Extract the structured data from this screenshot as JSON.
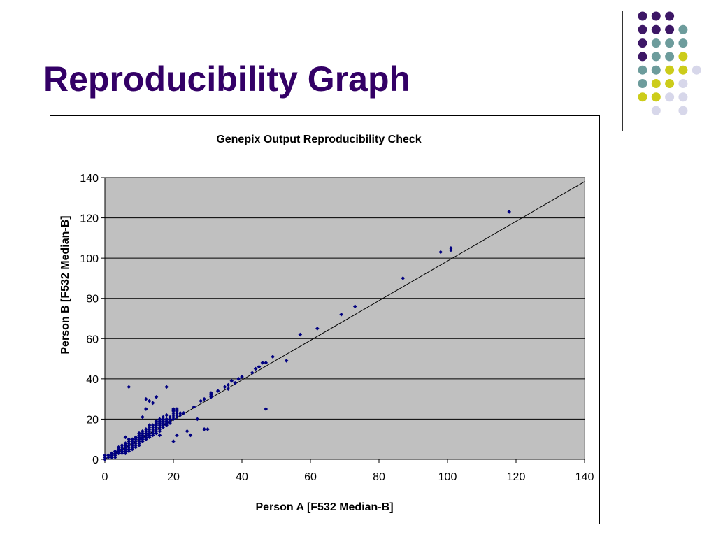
{
  "slide": {
    "title": "Reproducibility Graph"
  },
  "decoration": {
    "dot_colors": [
      "#3d1766",
      "#6d9c9c",
      "#cccc1a",
      "#d7d7ea"
    ],
    "dot_grid": [
      [
        0,
        0,
        0,
        null,
        null
      ],
      [
        0,
        0,
        0,
        1,
        null
      ],
      [
        0,
        1,
        1,
        1,
        null
      ],
      [
        0,
        1,
        1,
        2,
        null
      ],
      [
        1,
        1,
        2,
        2,
        3
      ],
      [
        1,
        2,
        2,
        3,
        null
      ],
      [
        2,
        2,
        3,
        3,
        null
      ],
      [
        null,
        3,
        null,
        3,
        null
      ]
    ]
  },
  "colors": {
    "title": "#330066",
    "plot_background": "#c0c0c0",
    "marker": "#000080",
    "gridline": "#000000",
    "trendline": "#000000"
  },
  "chart_data": {
    "type": "scatter",
    "title": "Genepix Output Reproducibility Check",
    "xlabel": "Person A [F532 Median-B]",
    "ylabel": "Person B [F532 Median-B]",
    "xlim": [
      0,
      140
    ],
    "ylim": [
      0,
      140
    ],
    "xticks": [
      0,
      20,
      40,
      60,
      80,
      100,
      120,
      140
    ],
    "yticks": [
      0,
      20,
      40,
      60,
      80,
      100,
      120,
      140
    ],
    "grid": "horizontal",
    "legend": "none",
    "marker": "diamond",
    "trendline": {
      "x": [
        0,
        140
      ],
      "y": [
        0,
        138
      ]
    },
    "points": [
      [
        0,
        0
      ],
      [
        0,
        1
      ],
      [
        0,
        2
      ],
      [
        1,
        1
      ],
      [
        1,
        2
      ],
      [
        2,
        1
      ],
      [
        2,
        2
      ],
      [
        2,
        3
      ],
      [
        3,
        2
      ],
      [
        3,
        3
      ],
      [
        3,
        4
      ],
      [
        3,
        1
      ],
      [
        4,
        3
      ],
      [
        4,
        4
      ],
      [
        4,
        5
      ],
      [
        4,
        6
      ],
      [
        5,
        4
      ],
      [
        5,
        5
      ],
      [
        5,
        6
      ],
      [
        5,
        7
      ],
      [
        5,
        3
      ],
      [
        6,
        4
      ],
      [
        6,
        5
      ],
      [
        6,
        6
      ],
      [
        6,
        7
      ],
      [
        6,
        8
      ],
      [
        6,
        11
      ],
      [
        6,
        3
      ],
      [
        7,
        5
      ],
      [
        7,
        6
      ],
      [
        7,
        7
      ],
      [
        7,
        8
      ],
      [
        7,
        9
      ],
      [
        7,
        10
      ],
      [
        7,
        4
      ],
      [
        7,
        36
      ],
      [
        8,
        6
      ],
      [
        8,
        7
      ],
      [
        8,
        8
      ],
      [
        8,
        9
      ],
      [
        8,
        10
      ],
      [
        8,
        5
      ],
      [
        9,
        7
      ],
      [
        9,
        8
      ],
      [
        9,
        9
      ],
      [
        9,
        10
      ],
      [
        9,
        11
      ],
      [
        9,
        6
      ],
      [
        10,
        8
      ],
      [
        10,
        9
      ],
      [
        10,
        10
      ],
      [
        10,
        11
      ],
      [
        10,
        12
      ],
      [
        10,
        13
      ],
      [
        10,
        7
      ],
      [
        11,
        9
      ],
      [
        11,
        10
      ],
      [
        11,
        11
      ],
      [
        11,
        12
      ],
      [
        11,
        13
      ],
      [
        11,
        14
      ],
      [
        11,
        21
      ],
      [
        12,
        10
      ],
      [
        12,
        11
      ],
      [
        12,
        12
      ],
      [
        12,
        13
      ],
      [
        12,
        14
      ],
      [
        12,
        15
      ],
      [
        12,
        25
      ],
      [
        12,
        30
      ],
      [
        13,
        11
      ],
      [
        13,
        12
      ],
      [
        13,
        13
      ],
      [
        13,
        14
      ],
      [
        13,
        15
      ],
      [
        13,
        16
      ],
      [
        13,
        17
      ],
      [
        13,
        29
      ],
      [
        14,
        12
      ],
      [
        14,
        13
      ],
      [
        14,
        14
      ],
      [
        14,
        15
      ],
      [
        14,
        16
      ],
      [
        14,
        17
      ],
      [
        14,
        28
      ],
      [
        15,
        13
      ],
      [
        15,
        14
      ],
      [
        15,
        15
      ],
      [
        15,
        16
      ],
      [
        15,
        17
      ],
      [
        15,
        18
      ],
      [
        15,
        19
      ],
      [
        15,
        31
      ],
      [
        16,
        14
      ],
      [
        16,
        15
      ],
      [
        16,
        16
      ],
      [
        16,
        17
      ],
      [
        16,
        18
      ],
      [
        16,
        19
      ],
      [
        16,
        20
      ],
      [
        16,
        12
      ],
      [
        17,
        16
      ],
      [
        17,
        17
      ],
      [
        17,
        18
      ],
      [
        17,
        19
      ],
      [
        17,
        20
      ],
      [
        17,
        21
      ],
      [
        18,
        17
      ],
      [
        18,
        18
      ],
      [
        18,
        19
      ],
      [
        18,
        20
      ],
      [
        18,
        22
      ],
      [
        18,
        36
      ],
      [
        19,
        18
      ],
      [
        19,
        19
      ],
      [
        19,
        20
      ],
      [
        19,
        21
      ],
      [
        20,
        20
      ],
      [
        20,
        21
      ],
      [
        20,
        22
      ],
      [
        20,
        23
      ],
      [
        20,
        24
      ],
      [
        20,
        25
      ],
      [
        20,
        9
      ],
      [
        21,
        21
      ],
      [
        21,
        22
      ],
      [
        21,
        23
      ],
      [
        21,
        24
      ],
      [
        21,
        25
      ],
      [
        21,
        12
      ],
      [
        22,
        22
      ],
      [
        22,
        23
      ],
      [
        23,
        23
      ],
      [
        24,
        14
      ],
      [
        25,
        12
      ],
      [
        26,
        26
      ],
      [
        27,
        20
      ],
      [
        28,
        29
      ],
      [
        29,
        30
      ],
      [
        29,
        15
      ],
      [
        30,
        15
      ],
      [
        31,
        32
      ],
      [
        31,
        33
      ],
      [
        31,
        31
      ],
      [
        33,
        34
      ],
      [
        35,
        36
      ],
      [
        36,
        35
      ],
      [
        36,
        37
      ],
      [
        37,
        39
      ],
      [
        38,
        38
      ],
      [
        39,
        40
      ],
      [
        40,
        41
      ],
      [
        43,
        43
      ],
      [
        44,
        45
      ],
      [
        45,
        46
      ],
      [
        46,
        48
      ],
      [
        47,
        48
      ],
      [
        47,
        25
      ],
      [
        49,
        51
      ],
      [
        53,
        49
      ],
      [
        57,
        62
      ],
      [
        62,
        65
      ],
      [
        69,
        72
      ],
      [
        73,
        76
      ],
      [
        87,
        90
      ],
      [
        98,
        103
      ],
      [
        101,
        104
      ],
      [
        101,
        105
      ],
      [
        118,
        123
      ]
    ]
  }
}
